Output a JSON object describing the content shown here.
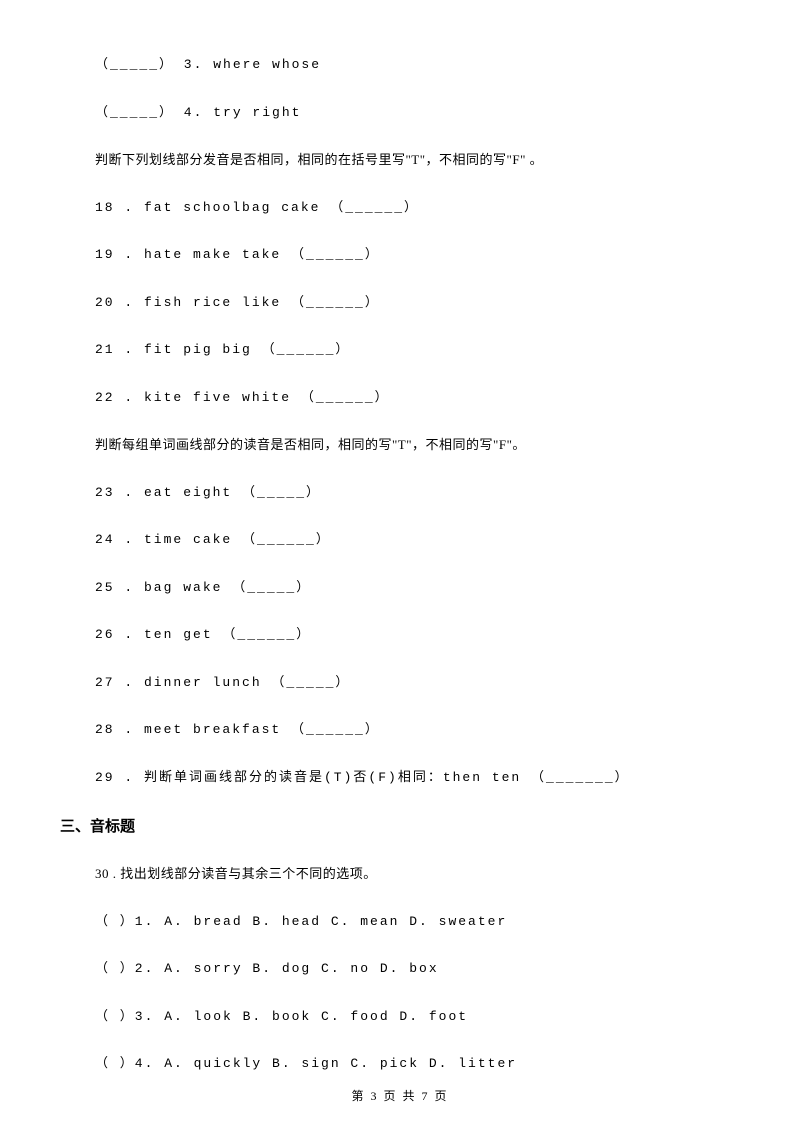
{
  "colors": {
    "background": "#ffffff",
    "text": "#000000"
  },
  "typography": {
    "base_size": 13,
    "section_header_size": 15,
    "footer_size": 12,
    "mono_letter_spacing": 2,
    "body_font": "SimSun",
    "header_font": "SimHei",
    "mono_font": "Courier New"
  },
  "lines": {
    "l1": "（_____） 3. where   whose",
    "l2": "（_____） 4. try    right",
    "instr1": "判断下列划线部分发音是否相同，相同的在括号里写\"T\"，不相同的写\"F\" 。",
    "l18": "18 . fat          schoolbag           cake （______）",
    "l19": "19 . hate         make             take （______）",
    "l20": "20 . fish         rice              like （______）",
    "l21": "21 . fit          pig               big  （______）",
    "l22": "22 . kite         five             white （______）",
    "instr2": "判断每组单词画线部分的读音是否相同，相同的写\"T\"，不相同的写\"F\"。",
    "l23": "23 . eat        eight （_____）",
    "l24": "24 . time      cake   （______）",
    "l25": "25 . bag       wake     （_____）",
    "l26": "26 . ten        get  （______）",
    "l27": "27 . dinner     lunch （_____）",
    "l28": "28 . meet       breakfast  （______）",
    "l29": "29 . 判断单词画线部分的读音是(T)否(F)相同：then     ten （_______）",
    "section3": "三、音标题",
    "l30": "30 . 找出划线部分读音与其余三个不同的选项。",
    "q1": "（    ）1. A. bread          B. head         C. mean             D. sweater",
    "q2": "（    ）2. A. sorry         B. dog          C. no             D. box",
    "q3": "（    ）3. A. look          B. book          C. food             D. foot",
    "q4": "（    ）4. A. quickly         B. sign         C. pick            D. litter"
  },
  "footer": "第 3 页 共 7 页"
}
